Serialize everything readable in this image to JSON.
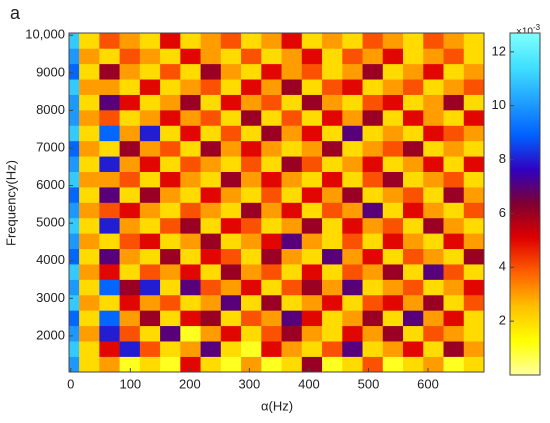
{
  "chart_data": {
    "type": "heatmap",
    "panel_label": "a",
    "xlabel": "α(Hz)",
    "ylabel": "Frequency(Hz)",
    "xlim": [
      -3,
      694
    ],
    "ylim": [
      1040,
      10060
    ],
    "xticks": [
      0,
      100,
      200,
      300,
      400,
      500,
      600
    ],
    "yticks": [
      2000,
      3000,
      4000,
      5000,
      6000,
      7000,
      8000,
      9000,
      {
        "value": 10000,
        "label": "10,000"
      }
    ],
    "x_edges": [
      -3,
      14,
      48,
      82,
      116,
      150,
      184,
      218,
      252,
      286,
      320,
      354,
      388,
      422,
      456,
      490,
      524,
      558,
      592,
      626,
      660,
      694
    ],
    "y_edges": [
      1040,
      1450,
      1860,
      2270,
      2680,
      3090,
      3500,
      3910,
      4320,
      4730,
      5140,
      5550,
      5960,
      6370,
      6780,
      7190,
      7600,
      8010,
      8420,
      8830,
      9240,
      9650,
      10060
    ],
    "values": [
      [
        10,
        2,
        3,
        1,
        2,
        1,
        5,
        2,
        1,
        3,
        1,
        2,
        6,
        1,
        2,
        4,
        1,
        2,
        3,
        1,
        2
      ],
      [
        11,
        2,
        5,
        8,
        4,
        2,
        3,
        7,
        2,
        1,
        5,
        3,
        2,
        4,
        7,
        2,
        3,
        5,
        2,
        6,
        3
      ],
      [
        10,
        3,
        8,
        4,
        2,
        7,
        1,
        3,
        5,
        2,
        4,
        6,
        3,
        2,
        5,
        3,
        6,
        2,
        4,
        3,
        2
      ],
      [
        9,
        2,
        9,
        3,
        6,
        2,
        5,
        6,
        2,
        4,
        3,
        7,
        5,
        2,
        3,
        6,
        2,
        7,
        3,
        5,
        2
      ],
      [
        11,
        3,
        2,
        5,
        3,
        4,
        2,
        3,
        7,
        2,
        6,
        2,
        3,
        5,
        2,
        4,
        5,
        3,
        6,
        2,
        4
      ],
      [
        10,
        2,
        9,
        6,
        8,
        2,
        7,
        4,
        3,
        5,
        2,
        4,
        6,
        3,
        7,
        2,
        3,
        4,
        2,
        3,
        5
      ],
      [
        11,
        3,
        5,
        2,
        4,
        3,
        5,
        2,
        6,
        3,
        4,
        2,
        5,
        2,
        4,
        3,
        6,
        2,
        7,
        4,
        2
      ],
      [
        9,
        2,
        7,
        3,
        2,
        6,
        2,
        5,
        4,
        2,
        6,
        3,
        2,
        7,
        3,
        5,
        2,
        4,
        3,
        2,
        6
      ],
      [
        10,
        3,
        2,
        4,
        5,
        2,
        3,
        6,
        2,
        3,
        5,
        7,
        3,
        2,
        4,
        2,
        5,
        3,
        2,
        5,
        3
      ],
      [
        11,
        2,
        8,
        3,
        2,
        4,
        6,
        2,
        5,
        4,
        2,
        3,
        6,
        2,
        5,
        3,
        4,
        2,
        6,
        3,
        2
      ],
      [
        10,
        3,
        4,
        5,
        3,
        2,
        4,
        3,
        2,
        6,
        3,
        5,
        2,
        4,
        3,
        7,
        2,
        5,
        3,
        2,
        4
      ],
      [
        9,
        2,
        7,
        2,
        6,
        3,
        2,
        5,
        3,
        2,
        4,
        2,
        5,
        3,
        6,
        2,
        3,
        4,
        2,
        6,
        3
      ],
      [
        11,
        3,
        3,
        4,
        2,
        5,
        3,
        2,
        6,
        3,
        5,
        3,
        2,
        5,
        2,
        4,
        6,
        2,
        3,
        4,
        2
      ],
      [
        10,
        2,
        8,
        3,
        5,
        2,
        4,
        3,
        2,
        4,
        2,
        6,
        4,
        2,
        3,
        5,
        2,
        3,
        5,
        2,
        5
      ],
      [
        9,
        3,
        2,
        6,
        3,
        4,
        2,
        6,
        3,
        5,
        3,
        2,
        3,
        6,
        2,
        3,
        4,
        6,
        2,
        3,
        2
      ],
      [
        11,
        2,
        9,
        3,
        8,
        2,
        5,
        2,
        4,
        2,
        6,
        3,
        5,
        2,
        7,
        2,
        3,
        2,
        5,
        4,
        3
      ],
      [
        10,
        3,
        4,
        2,
        3,
        5,
        3,
        4,
        2,
        6,
        2,
        4,
        2,
        5,
        3,
        6,
        2,
        5,
        3,
        2,
        5
      ],
      [
        10,
        2,
        7,
        5,
        2,
        3,
        6,
        2,
        5,
        3,
        4,
        2,
        6,
        3,
        2,
        4,
        5,
        2,
        3,
        6,
        2
      ],
      [
        11,
        3,
        3,
        2,
        5,
        2,
        3,
        4,
        2,
        5,
        3,
        6,
        2,
        4,
        5,
        2,
        3,
        4,
        2,
        3,
        4
      ],
      [
        9,
        2,
        6,
        3,
        2,
        4,
        2,
        6,
        3,
        2,
        5,
        3,
        4,
        2,
        3,
        6,
        2,
        3,
        5,
        2,
        3
      ],
      [
        10,
        3,
        2,
        4,
        3,
        2,
        5,
        3,
        2,
        4,
        2,
        3,
        5,
        2,
        4,
        3,
        5,
        2,
        3,
        4,
        2
      ],
      [
        11,
        2,
        4,
        3,
        2,
        5,
        2,
        3,
        4,
        2,
        3,
        5,
        2,
        3,
        2,
        4,
        3,
        2,
        4,
        3,
        2
      ]
    ],
    "clim": [
      0,
      12.7
    ],
    "cticks": [
      2,
      4,
      6,
      8,
      10,
      12
    ],
    "colorbar_label": "×10",
    "colorbar_exponent": "-3",
    "colormap": [
      "#ffffa0",
      "#ffff00",
      "#ffc000",
      "#ff6000",
      "#e00000",
      "#800030",
      "#3000c0",
      "#0060ff",
      "#20a0ff",
      "#40e0ff",
      "#80ffff"
    ]
  }
}
